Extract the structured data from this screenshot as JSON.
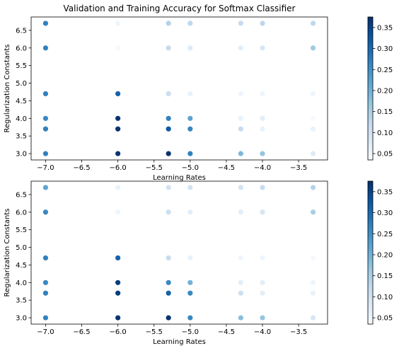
{
  "title": "Validation and Training Accuracy for Softmax Classifier",
  "colormap": {
    "name": "Blues",
    "stops": [
      "#f7fbff",
      "#deebf7",
      "#c6dbef",
      "#9ecae1",
      "#6baed6",
      "#4292c6",
      "#2171b5",
      "#08519c",
      "#08306b"
    ]
  },
  "chart_data": [
    {
      "type": "scatter",
      "title": "Validation and Training Accuracy for Softmax Classifier",
      "xlabel": "Learning Rates",
      "ylabel": "Regularization Constants",
      "xlim": [
        -7.2,
        -3.1
      ],
      "ylim": [
        2.82,
        6.88
      ],
      "xticks": [
        -7.0,
        -6.5,
        -6.0,
        -5.5,
        -5.0,
        -4.5,
        -4.0,
        -3.5
      ],
      "xtick_labels": [
        "−7.0",
        "−6.5",
        "−6.0",
        "−5.5",
        "−5.0",
        "−4.5",
        "−4.0",
        "−3.5"
      ],
      "yticks": [
        3.0,
        3.5,
        4.0,
        4.5,
        5.0,
        5.5,
        6.0,
        6.5
      ],
      "ytick_labels": [
        "3.0",
        "3.5",
        "4.0",
        "4.5",
        "5.0",
        "5.5",
        "6.0",
        "6.5"
      ],
      "colorbar": {
        "min": 0.035,
        "max": 0.375,
        "ticks": [
          0.05,
          0.1,
          0.15,
          0.2,
          0.25,
          0.3,
          0.35
        ],
        "tick_labels": [
          "0.05",
          "0.10",
          "0.15",
          "0.20",
          "0.25",
          "0.30",
          "0.35"
        ]
      },
      "points": [
        {
          "x": -7.0,
          "y": 6.7,
          "v": 0.27
        },
        {
          "x": -7.0,
          "y": 6.0,
          "v": 0.27
        },
        {
          "x": -7.0,
          "y": 4.7,
          "v": 0.27
        },
        {
          "x": -7.0,
          "y": 4.0,
          "v": 0.26
        },
        {
          "x": -7.0,
          "y": 3.7,
          "v": 0.27
        },
        {
          "x": -7.0,
          "y": 3.0,
          "v": 0.27
        },
        {
          "x": -6.0,
          "y": 6.7,
          "v": 0.05
        },
        {
          "x": -6.0,
          "y": 6.0,
          "v": 0.04
        },
        {
          "x": -6.0,
          "y": 4.7,
          "v": 0.31
        },
        {
          "x": -6.0,
          "y": 4.0,
          "v": 0.37
        },
        {
          "x": -6.0,
          "y": 3.7,
          "v": 0.37
        },
        {
          "x": -6.0,
          "y": 3.0,
          "v": 0.37
        },
        {
          "x": -5.3,
          "y": 6.7,
          "v": 0.14
        },
        {
          "x": -5.3,
          "y": 6.0,
          "v": 0.12
        },
        {
          "x": -5.3,
          "y": 4.7,
          "v": 0.11
        },
        {
          "x": -5.3,
          "y": 4.0,
          "v": 0.27
        },
        {
          "x": -5.3,
          "y": 3.7,
          "v": 0.32
        },
        {
          "x": -5.3,
          "y": 3.0,
          "v": 0.37
        },
        {
          "x": -5.0,
          "y": 6.7,
          "v": 0.13
        },
        {
          "x": -5.0,
          "y": 6.0,
          "v": 0.08
        },
        {
          "x": -5.0,
          "y": 4.7,
          "v": 0.06
        },
        {
          "x": -5.0,
          "y": 4.0,
          "v": 0.22
        },
        {
          "x": -5.0,
          "y": 3.7,
          "v": 0.26
        },
        {
          "x": -5.0,
          "y": 3.0,
          "v": 0.27
        },
        {
          "x": -4.3,
          "y": 6.7,
          "v": 0.12
        },
        {
          "x": -4.3,
          "y": 6.0,
          "v": 0.07
        },
        {
          "x": -4.3,
          "y": 4.7,
          "v": 0.05
        },
        {
          "x": -4.3,
          "y": 4.0,
          "v": 0.06
        },
        {
          "x": -4.3,
          "y": 3.7,
          "v": 0.12
        },
        {
          "x": -4.3,
          "y": 3.0,
          "v": 0.19
        },
        {
          "x": -4.0,
          "y": 6.7,
          "v": 0.13
        },
        {
          "x": -4.0,
          "y": 6.0,
          "v": 0.09
        },
        {
          "x": -4.0,
          "y": 4.7,
          "v": 0.05
        },
        {
          "x": -4.0,
          "y": 4.0,
          "v": 0.07
        },
        {
          "x": -4.0,
          "y": 3.7,
          "v": 0.06
        },
        {
          "x": -4.0,
          "y": 3.0,
          "v": 0.17
        },
        {
          "x": -3.3,
          "y": 6.7,
          "v": 0.13
        },
        {
          "x": -3.3,
          "y": 6.0,
          "v": 0.16
        },
        {
          "x": -3.3,
          "y": 4.7,
          "v": 0.05
        },
        {
          "x": -3.3,
          "y": 4.0,
          "v": 0.04
        },
        {
          "x": -3.3,
          "y": 3.7,
          "v": 0.06
        },
        {
          "x": -3.3,
          "y": 3.0,
          "v": 0.08
        }
      ]
    },
    {
      "type": "scatter",
      "title": "",
      "xlabel": "Learning Rates",
      "ylabel": "Regularization Constants",
      "xlim": [
        -7.2,
        -3.1
      ],
      "ylim": [
        2.82,
        6.88
      ],
      "xticks": [
        -7.0,
        -6.5,
        -6.0,
        -5.5,
        -5.0,
        -4.5,
        -4.0,
        -3.5
      ],
      "xtick_labels": [
        "−7.0",
        "−6.5",
        "−6.0",
        "−5.5",
        "−5.0",
        "−4.5",
        "−4.0",
        "−3.5"
      ],
      "yticks": [
        3.0,
        3.5,
        4.0,
        4.5,
        5.0,
        5.5,
        6.0,
        6.5
      ],
      "ytick_labels": [
        "3.0",
        "3.5",
        "4.0",
        "4.5",
        "5.0",
        "5.5",
        "6.0",
        "6.5"
      ],
      "colorbar": {
        "min": 0.035,
        "max": 0.375,
        "ticks": [
          0.05,
          0.1,
          0.15,
          0.2,
          0.25,
          0.3,
          0.35
        ],
        "tick_labels": [
          "0.05",
          "0.10",
          "0.15",
          "0.20",
          "0.25",
          "0.30",
          "0.35"
        ]
      },
      "points": [
        {
          "x": -7.0,
          "y": 6.7,
          "v": 0.22
        },
        {
          "x": -7.0,
          "y": 6.0,
          "v": 0.26
        },
        {
          "x": -7.0,
          "y": 4.7,
          "v": 0.27
        },
        {
          "x": -7.0,
          "y": 4.0,
          "v": 0.26
        },
        {
          "x": -7.0,
          "y": 3.7,
          "v": 0.27
        },
        {
          "x": -7.0,
          "y": 3.0,
          "v": 0.27
        },
        {
          "x": -6.0,
          "y": 6.7,
          "v": 0.06
        },
        {
          "x": -6.0,
          "y": 6.0,
          "v": 0.05
        },
        {
          "x": -6.0,
          "y": 4.7,
          "v": 0.31
        },
        {
          "x": -6.0,
          "y": 4.0,
          "v": 0.36
        },
        {
          "x": -6.0,
          "y": 3.7,
          "v": 0.36
        },
        {
          "x": -6.0,
          "y": 3.0,
          "v": 0.37
        },
        {
          "x": -5.3,
          "y": 6.7,
          "v": 0.1
        },
        {
          "x": -5.3,
          "y": 6.0,
          "v": 0.11
        },
        {
          "x": -5.3,
          "y": 4.7,
          "v": 0.12
        },
        {
          "x": -5.3,
          "y": 4.0,
          "v": 0.26
        },
        {
          "x": -5.3,
          "y": 3.7,
          "v": 0.31
        },
        {
          "x": -5.3,
          "y": 3.0,
          "v": 0.37
        },
        {
          "x": -5.0,
          "y": 6.7,
          "v": 0.1
        },
        {
          "x": -5.0,
          "y": 6.0,
          "v": 0.07
        },
        {
          "x": -5.0,
          "y": 4.7,
          "v": 0.06
        },
        {
          "x": -5.0,
          "y": 4.0,
          "v": 0.2
        },
        {
          "x": -5.0,
          "y": 3.7,
          "v": 0.26
        },
        {
          "x": -5.0,
          "y": 3.0,
          "v": 0.26
        },
        {
          "x": -4.3,
          "y": 6.7,
          "v": 0.1
        },
        {
          "x": -4.3,
          "y": 6.0,
          "v": 0.07
        },
        {
          "x": -4.3,
          "y": 4.7,
          "v": 0.05
        },
        {
          "x": -4.3,
          "y": 4.0,
          "v": 0.07
        },
        {
          "x": -4.3,
          "y": 3.7,
          "v": 0.11
        },
        {
          "x": -4.3,
          "y": 3.0,
          "v": 0.18
        },
        {
          "x": -4.0,
          "y": 6.7,
          "v": 0.12
        },
        {
          "x": -4.0,
          "y": 6.0,
          "v": 0.09
        },
        {
          "x": -4.0,
          "y": 4.7,
          "v": 0.05
        },
        {
          "x": -4.0,
          "y": 4.0,
          "v": 0.07
        },
        {
          "x": -4.0,
          "y": 3.7,
          "v": 0.07
        },
        {
          "x": -4.0,
          "y": 3.0,
          "v": 0.17
        },
        {
          "x": -3.3,
          "y": 6.7,
          "v": 0.14
        },
        {
          "x": -3.3,
          "y": 6.0,
          "v": 0.15
        },
        {
          "x": -3.3,
          "y": 4.7,
          "v": 0.04
        },
        {
          "x": -3.3,
          "y": 4.0,
          "v": 0.05
        },
        {
          "x": -3.3,
          "y": 3.7,
          "v": 0.06
        },
        {
          "x": -3.3,
          "y": 3.0,
          "v": 0.09
        }
      ]
    }
  ]
}
